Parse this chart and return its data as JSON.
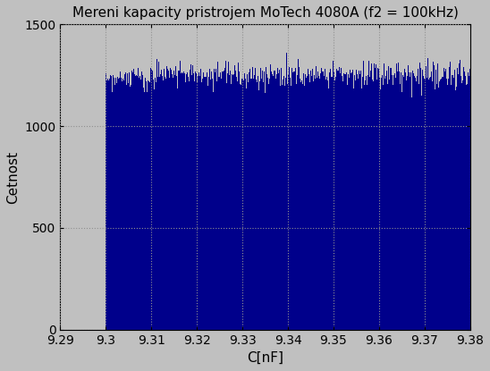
{
  "title": "Mereni kapacity pristrojem MoTech 4080A (f2 = 100kHz)",
  "xlabel": "C[nF]",
  "ylabel": "Cetnost",
  "xlim": [
    9.29,
    9.38
  ],
  "ylim": [
    0,
    1500
  ],
  "xticks": [
    9.29,
    9.3,
    9.31,
    9.32,
    9.33,
    9.34,
    9.35,
    9.36,
    9.37,
    9.38
  ],
  "xtick_labels": [
    "9.29",
    "9.3",
    "9.31",
    "9.32",
    "9.33",
    "9.34",
    "9.35",
    "9.36",
    "9.37",
    "9.38"
  ],
  "yticks": [
    0,
    500,
    1000,
    1500
  ],
  "bar_color": "#00008B",
  "hist_start": 9.3,
  "hist_end": 9.38,
  "n_bins": 800,
  "n_samples": 1000000,
  "fig_bg_color": "#C0C0C0",
  "axes_bg_color": "#C0C0C0",
  "grid_color": "#909090",
  "title_fontsize": 11,
  "label_fontsize": 11,
  "tick_fontsize": 10
}
